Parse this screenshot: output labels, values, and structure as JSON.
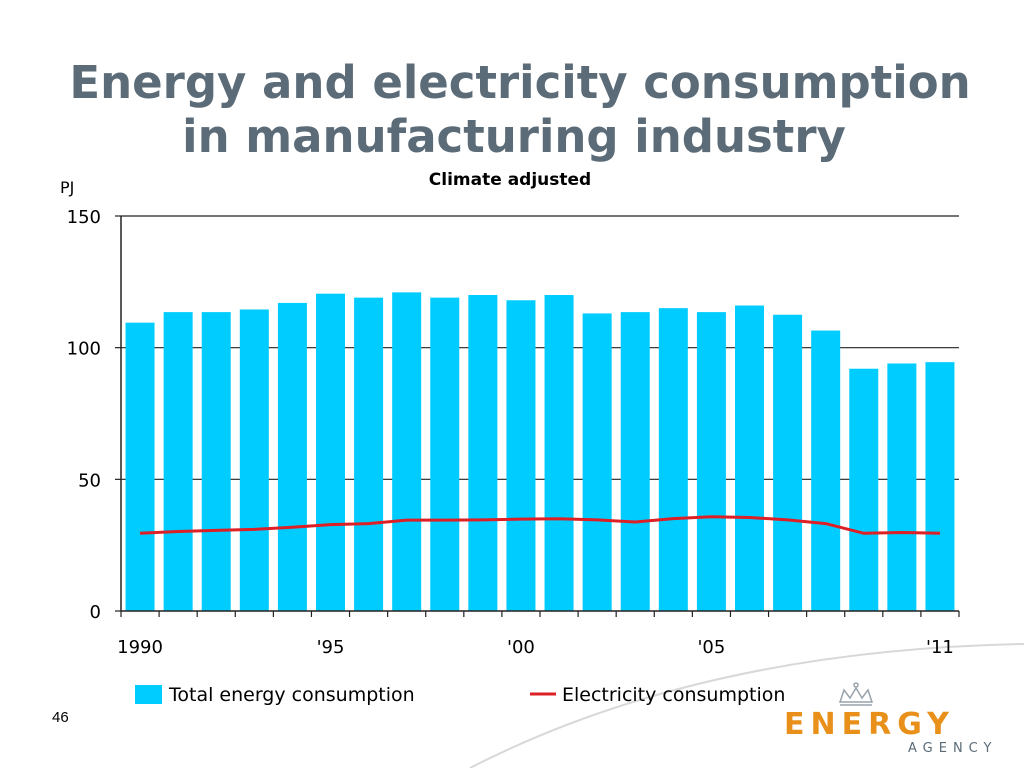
{
  "slide": {
    "title_line1": "Energy and electricity consumption",
    "title_line2": "in manufacturing industry",
    "page_number": "46"
  },
  "logo": {
    "word": "ENERGY",
    "sub": "AGENCY"
  },
  "colors": {
    "title": "#5b6b77",
    "bar": "#00ccff",
    "line": "#dd1f26",
    "logo": "#e8901a"
  },
  "chart_data": {
    "type": "bar",
    "title": "Climate adjusted",
    "ylabel": "PJ",
    "ylim": [
      0,
      150
    ],
    "yticks": [
      0,
      50,
      100,
      150
    ],
    "grid": true,
    "legend_position": "bottom",
    "categories": [
      1990,
      1991,
      1992,
      1993,
      1994,
      1995,
      1996,
      1997,
      1998,
      1999,
      2000,
      2001,
      2002,
      2003,
      2004,
      2005,
      2006,
      2007,
      2008,
      2009,
      2010,
      2011
    ],
    "x_tick_labels": [
      {
        "year": 1990,
        "label": "1990"
      },
      {
        "year": 1995,
        "label": "'95"
      },
      {
        "year": 2000,
        "label": "'00"
      },
      {
        "year": 2005,
        "label": "'05"
      },
      {
        "year": 2011,
        "label": "'11"
      }
    ],
    "series": [
      {
        "name": "Total energy consumption",
        "type": "bar",
        "values": [
          109.5,
          113.5,
          113.5,
          114.5,
          117,
          120.5,
          119,
          121,
          119,
          120,
          118,
          120,
          113,
          113.5,
          115,
          113.5,
          116,
          112.5,
          106.5,
          92,
          94,
          94.5
        ]
      },
      {
        "name": "Electricity consumption",
        "type": "line",
        "values": [
          29.5,
          30.2,
          30.6,
          31,
          31.8,
          32.8,
          33.2,
          34.5,
          34.5,
          34.6,
          34.9,
          35,
          34.6,
          33.8,
          35.1,
          35.8,
          35.5,
          34.6,
          33.2,
          29.5,
          29.8,
          29.5
        ]
      }
    ]
  }
}
